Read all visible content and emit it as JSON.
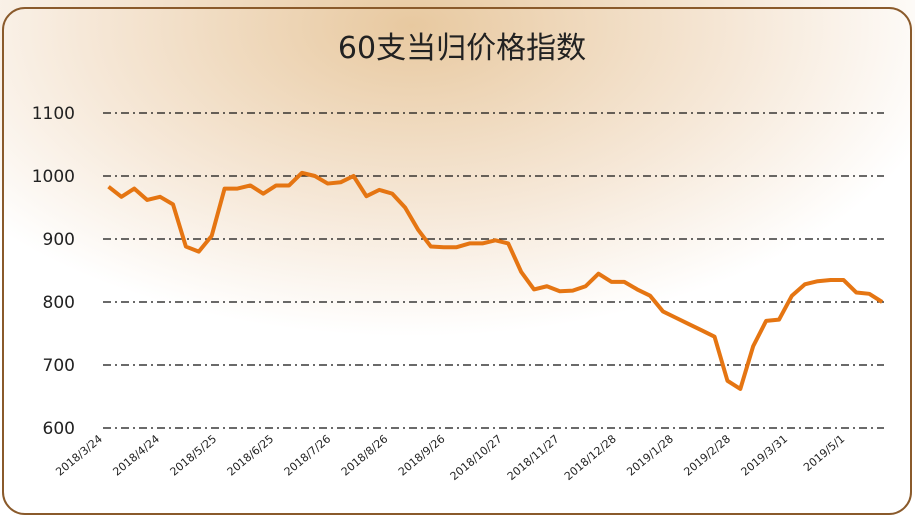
{
  "chart_data": {
    "type": "line",
    "title": "60支当归价格指数",
    "x": [
      "2018/3/27",
      "2018/4/3",
      "2018/4/10",
      "2018/4/17",
      "2018/4/24",
      "2018/5/1",
      "2018/5/8",
      "2018/5/15",
      "2018/5/22",
      "2018/5/29",
      "2018/6/5",
      "2018/6/12",
      "2018/6/19",
      "2018/6/26",
      "2018/7/3",
      "2018/7/10",
      "2018/7/17",
      "2018/7/24",
      "2018/7/31",
      "2018/8/7",
      "2018/8/14",
      "2018/8/21",
      "2018/8/28",
      "2018/9/4",
      "2018/9/11",
      "2018/9/18",
      "2018/9/25",
      "2018/10/2",
      "2018/10/9",
      "2018/10/16",
      "2018/10/23",
      "2018/10/30",
      "2018/11/6",
      "2018/11/13",
      "2018/11/20",
      "2018/11/27",
      "2018/12/4",
      "2018/12/11",
      "2018/12/18",
      "2018/12/25",
      "2019/1/1",
      "2019/1/8",
      "2019/1/15",
      "2019/1/22",
      "2019/1/29",
      "2019/2/5",
      "2019/2/12",
      "2019/2/19",
      "2019/2/26",
      "2019/3/5",
      "2019/3/12",
      "2019/3/19",
      "2019/3/26",
      "2019/4/2",
      "2019/4/9",
      "2019/4/16",
      "2019/4/23",
      "2019/4/30",
      "2019/5/7",
      "2019/5/14",
      "2019/5/21"
    ],
    "series": [
      {
        "color": "#e57512",
        "values": [
          983,
          967,
          980,
          962,
          967,
          955,
          888,
          880,
          905,
          980,
          980,
          985,
          972,
          985,
          985,
          1005,
          1000,
          988,
          990,
          1000,
          968,
          978,
          972,
          950,
          915,
          888,
          887,
          887,
          893,
          893,
          898,
          893,
          848,
          820,
          825,
          817,
          818,
          825,
          845,
          832,
          832,
          820,
          810,
          785,
          775,
          765,
          755,
          745,
          675,
          662,
          730,
          770,
          772,
          810,
          828,
          833,
          835,
          835,
          815,
          813,
          800
        ]
      }
    ],
    "xlim": [
      "2018/3/24",
      "2019/5/22"
    ],
    "xticks": [
      "2018/3/24",
      "2018/4/24",
      "2018/5/25",
      "2018/6/25",
      "2018/7/26",
      "2018/8/26",
      "2018/9/26",
      "2018/10/27",
      "2018/11/27",
      "2018/12/28",
      "2019/1/28",
      "2019/2/28",
      "2019/3/31",
      "2019/5/1"
    ],
    "ylim": [
      600,
      1100
    ],
    "yticks": [
      600,
      700,
      800,
      900,
      1000,
      1100
    ],
    "grid": true
  }
}
